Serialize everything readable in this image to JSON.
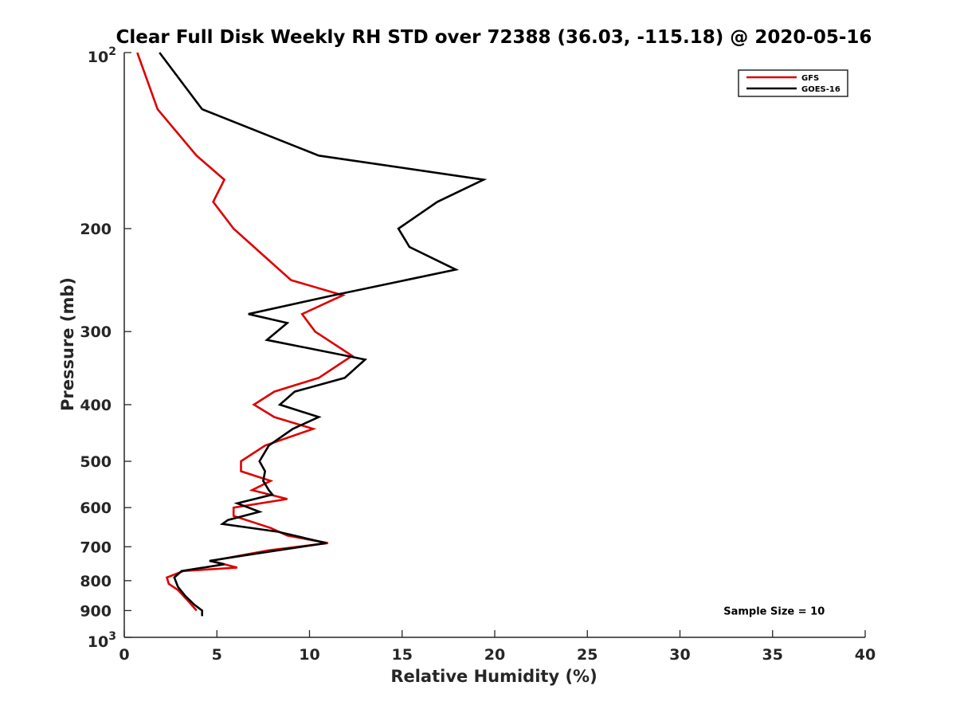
{
  "chart_data": {
    "type": "line",
    "title": "Clear Full Disk Weekly RH STD over 72388 (36.03, -115.18) @ 2020-05-16",
    "xlabel": "Relative Humidity (%)",
    "ylabel": "Pressure (mb)",
    "xlim": [
      0,
      40
    ],
    "ylim": [
      100,
      1000
    ],
    "y_scale": "log",
    "y_reversed": true,
    "grid": false,
    "legend_position": "top-right",
    "x_ticks": [
      0,
      5,
      10,
      15,
      20,
      25,
      30,
      35,
      40
    ],
    "y_ticks": [
      100,
      200,
      300,
      400,
      500,
      600,
      700,
      800,
      900,
      1000
    ],
    "y_tick_labels": [
      {
        "base": "10",
        "exp": "2"
      },
      {
        "base": "200",
        "exp": ""
      },
      {
        "base": "300",
        "exp": ""
      },
      {
        "base": "400",
        "exp": ""
      },
      {
        "base": "500",
        "exp": ""
      },
      {
        "base": "600",
        "exp": ""
      },
      {
        "base": "700",
        "exp": ""
      },
      {
        "base": "800",
        "exp": ""
      },
      {
        "base": "900",
        "exp": ""
      },
      {
        "base": "10",
        "exp": "3"
      }
    ],
    "series": [
      {
        "name": "GFS",
        "color": "#dd0000",
        "points": [
          [
            0.7,
            100
          ],
          [
            1.8,
            125
          ],
          [
            3.9,
            150
          ],
          [
            5.4,
            165
          ],
          [
            4.8,
            180
          ],
          [
            5.9,
            200
          ],
          [
            7.7,
            225
          ],
          [
            9.0,
            245
          ],
          [
            11.8,
            260
          ],
          [
            9.6,
            280
          ],
          [
            10.3,
            300
          ],
          [
            12.3,
            330
          ],
          [
            10.5,
            360
          ],
          [
            8.1,
            380
          ],
          [
            7.0,
            400
          ],
          [
            8.1,
            420
          ],
          [
            10.2,
            440
          ],
          [
            7.6,
            470
          ],
          [
            6.3,
            500
          ],
          [
            6.3,
            520
          ],
          [
            7.9,
            540
          ],
          [
            6.9,
            560
          ],
          [
            8.8,
            580
          ],
          [
            5.9,
            600
          ],
          [
            5.9,
            620
          ],
          [
            7.9,
            650
          ],
          [
            8.8,
            670
          ],
          [
            11.0,
            690
          ],
          [
            7.8,
            710
          ],
          [
            4.7,
            740
          ],
          [
            6.1,
            760
          ],
          [
            3.2,
            770
          ],
          [
            2.3,
            790
          ],
          [
            2.4,
            810
          ],
          [
            2.9,
            830
          ],
          [
            3.5,
            870
          ],
          [
            3.9,
            900
          ]
        ]
      },
      {
        "name": "GOES-16",
        "color": "#000000",
        "points": [
          [
            1.9,
            100
          ],
          [
            4.2,
            125
          ],
          [
            10.5,
            150
          ],
          [
            19.4,
            165
          ],
          [
            16.9,
            180
          ],
          [
            14.8,
            200
          ],
          [
            15.4,
            215
          ],
          [
            17.9,
            235
          ],
          [
            11.3,
            260
          ],
          [
            6.7,
            280
          ],
          [
            8.8,
            290
          ],
          [
            7.7,
            310
          ],
          [
            12.0,
            330
          ],
          [
            13.0,
            335
          ],
          [
            11.9,
            360
          ],
          [
            9.2,
            380
          ],
          [
            8.4,
            400
          ],
          [
            10.5,
            420
          ],
          [
            9.1,
            440
          ],
          [
            7.8,
            470
          ],
          [
            7.3,
            500
          ],
          [
            7.6,
            520
          ],
          [
            7.5,
            540
          ],
          [
            7.8,
            560
          ],
          [
            8.0,
            570
          ],
          [
            6.1,
            590
          ],
          [
            7.3,
            610
          ],
          [
            5.6,
            630
          ],
          [
            5.3,
            640
          ],
          [
            8.3,
            660
          ],
          [
            10.9,
            690
          ],
          [
            7.0,
            720
          ],
          [
            4.6,
            740
          ],
          [
            5.4,
            750
          ],
          [
            3.1,
            770
          ],
          [
            2.7,
            790
          ],
          [
            2.9,
            820
          ],
          [
            3.3,
            850
          ],
          [
            3.8,
            880
          ],
          [
            4.2,
            900
          ],
          [
            4.2,
            920
          ]
        ]
      }
    ],
    "annotations": [
      {
        "text": "Sample Size = 10",
        "x": 35,
        "y": 900
      }
    ]
  }
}
